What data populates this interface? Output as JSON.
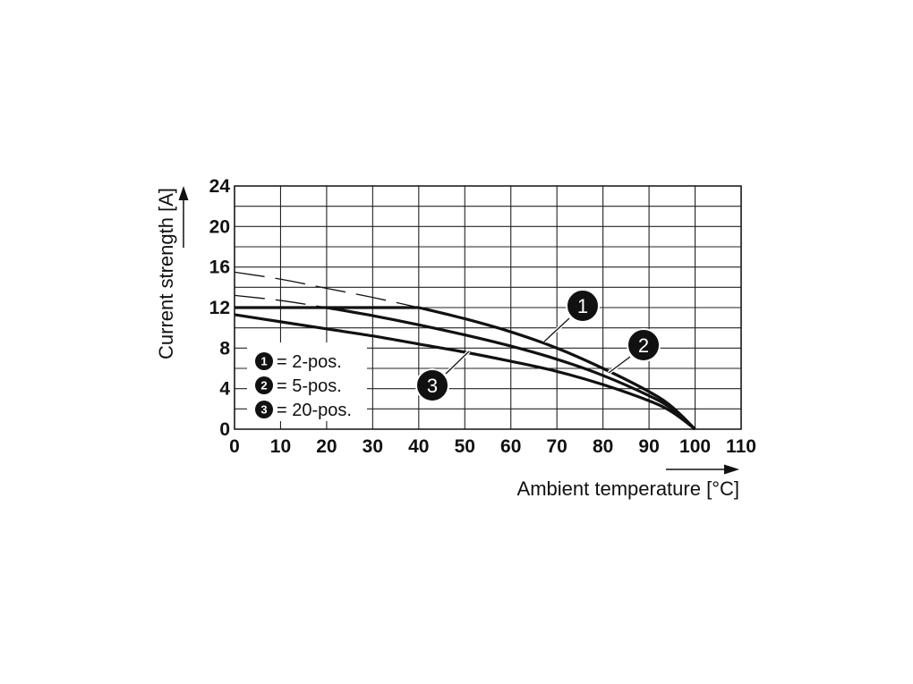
{
  "chart_data": {
    "type": "line",
    "xlabel": "Ambient temperature [°C]",
    "ylabel": "Current strength [A]",
    "xlim": [
      0,
      110
    ],
    "ylim": [
      0,
      24
    ],
    "x_ticks": [
      "0",
      "10",
      "20",
      "30",
      "40",
      "50",
      "60",
      "70",
      "80",
      "90",
      "100",
      "110"
    ],
    "y_ticks": [
      "0",
      "4",
      "8",
      "12",
      "16",
      "20",
      "24"
    ],
    "grid": true,
    "legend_position": "bottom-left",
    "series": [
      {
        "name": "2-pos.",
        "marker": "1",
        "x": [
          0,
          10,
          20,
          30,
          40,
          50,
          60,
          70,
          80,
          90,
          95,
          100
        ],
        "y": [
          12,
          12,
          12,
          12,
          12,
          10.9,
          9.6,
          8.0,
          6.0,
          3.7,
          2.2,
          0
        ],
        "derating_x": [
          0,
          10,
          20,
          30,
          40
        ],
        "derating_y": [
          15.5,
          14.8,
          13.9,
          13.0,
          12.0
        ]
      },
      {
        "name": "5-pos.",
        "marker": "2",
        "x": [
          0,
          10,
          20,
          30,
          40,
          50,
          60,
          70,
          80,
          90,
          95,
          100
        ],
        "y": [
          13.2,
          12.7,
          12.0,
          11.2,
          10.3,
          9.3,
          8.2,
          6.9,
          5.3,
          3.3,
          2.0,
          0
        ],
        "dashed_until_x": 20
      },
      {
        "name": "20-pos.",
        "marker": "3",
        "x": [
          0,
          10,
          20,
          30,
          40,
          50,
          60,
          70,
          80,
          90,
          95,
          100
        ],
        "y": [
          11.3,
          10.6,
          9.9,
          9.2,
          8.4,
          7.6,
          6.7,
          5.7,
          4.4,
          2.8,
          1.7,
          0
        ]
      }
    ],
    "legend": [
      {
        "marker": "1",
        "label": "= 2-pos."
      },
      {
        "marker": "2",
        "label": "= 5-pos."
      },
      {
        "marker": "3",
        "label": "= 20-pos."
      }
    ]
  }
}
